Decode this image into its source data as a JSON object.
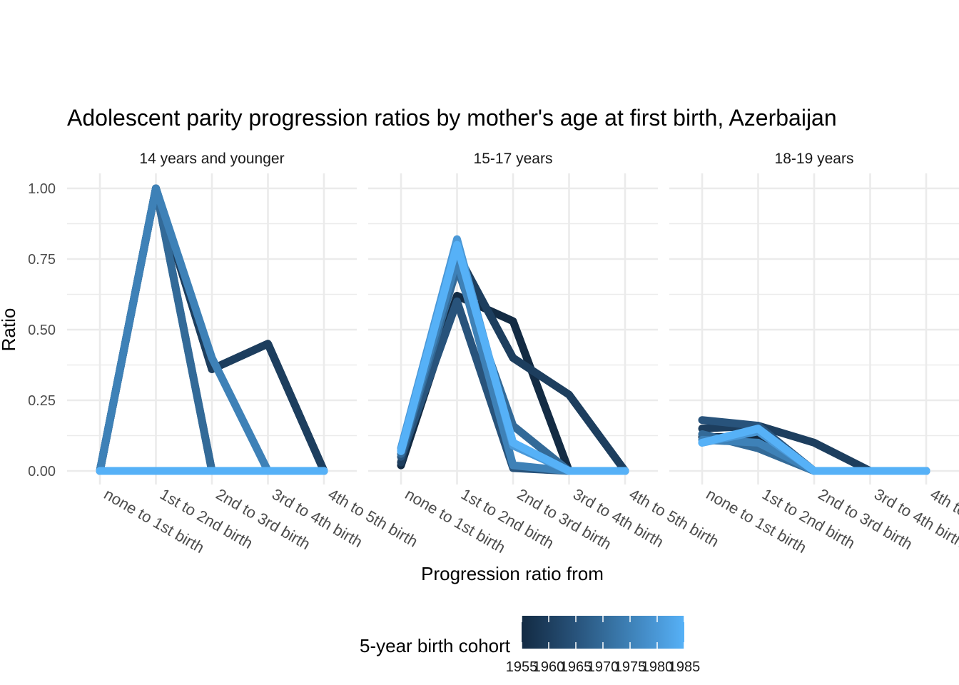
{
  "chart_data": {
    "type": "line",
    "title": "Adolescent parity progression ratios by mother's age at first birth,  Azerbaijan",
    "xlabel": "Progression ratio from",
    "ylabel": "Ratio",
    "ylim": [
      0,
      1
    ],
    "yticks": [
      "0.00",
      "0.25",
      "0.50",
      "0.75",
      "1.00"
    ],
    "categories": [
      "none to 1st birth",
      "1st to 2nd birth",
      "2nd to 3rd birth",
      "3rd to 4th birth",
      "4th to 5th birth"
    ],
    "legend": {
      "title": "5-year birth cohort",
      "position": "bottom",
      "ticks": [
        "1955",
        "1960",
        "1965",
        "1970",
        "1975",
        "1980",
        "1985"
      ],
      "colors": [
        "#132b43",
        "#1d3e5e",
        "#28537b",
        "#336a98",
        "#3e81b7",
        "#4a98d7",
        "#56b1f7"
      ]
    },
    "panels": [
      {
        "label": "14 years and younger",
        "series": [
          {
            "cohort": 1955,
            "color": "#132b43",
            "values": [
              0,
              1.0,
              0.36,
              0.45,
              0
            ]
          },
          {
            "cohort": 1960,
            "color": "#1d3e5e",
            "values": [
              0,
              1.0,
              0.36,
              0.45,
              0
            ]
          },
          {
            "cohort": 1965,
            "color": "#28537b",
            "values": [
              0,
              1.0,
              0,
              0,
              0
            ]
          },
          {
            "cohort": 1970,
            "color": "#336a98",
            "values": [
              0,
              1.0,
              0,
              0,
              0
            ]
          },
          {
            "cohort": 1975,
            "color": "#3e81b7",
            "values": [
              0,
              1.0,
              0.4,
              0,
              0
            ]
          },
          {
            "cohort": 1980,
            "color": "#4a98d7",
            "values": [
              0,
              0,
              0,
              0,
              0
            ]
          },
          {
            "cohort": 1985,
            "color": "#56b1f7",
            "values": [
              0,
              0,
              0,
              0,
              0
            ]
          }
        ]
      },
      {
        "label": "15-17 years",
        "series": [
          {
            "cohort": 1955,
            "color": "#132b43",
            "values": [
              0.02,
              0.62,
              0.53,
              0,
              0
            ]
          },
          {
            "cohort": 1960,
            "color": "#1d3e5e",
            "values": [
              0.03,
              0.77,
              0.4,
              0.27,
              0
            ]
          },
          {
            "cohort": 1965,
            "color": "#28537b",
            "values": [
              0.05,
              0.6,
              0.01,
              0,
              0
            ]
          },
          {
            "cohort": 1970,
            "color": "#336a98",
            "values": [
              0.06,
              0.72,
              0.16,
              0,
              0
            ]
          },
          {
            "cohort": 1975,
            "color": "#3e81b7",
            "values": [
              0.07,
              0.75,
              0.02,
              0,
              0
            ]
          },
          {
            "cohort": 1980,
            "color": "#4a98d7",
            "values": [
              0.08,
              0.82,
              0.09,
              0,
              0
            ]
          },
          {
            "cohort": 1985,
            "color": "#56b1f7",
            "values": [
              0.07,
              0.8,
              0.1,
              0,
              0
            ]
          }
        ]
      },
      {
        "label": "18-19 years",
        "series": [
          {
            "cohort": 1955,
            "color": "#132b43",
            "values": [
              0.12,
              0.12,
              0,
              0,
              0
            ]
          },
          {
            "cohort": 1960,
            "color": "#1d3e5e",
            "values": [
              0.15,
              0.16,
              0.1,
              0,
              0
            ]
          },
          {
            "cohort": 1965,
            "color": "#28537b",
            "values": [
              0.18,
              0.16,
              0,
              0,
              0
            ]
          },
          {
            "cohort": 1970,
            "color": "#336a98",
            "values": [
              0.13,
              0.08,
              0,
              0,
              0
            ]
          },
          {
            "cohort": 1975,
            "color": "#3e81b7",
            "values": [
              0.11,
              0.1,
              0,
              0,
              0
            ]
          },
          {
            "cohort": 1980,
            "color": "#4a98d7",
            "values": [
              0.1,
              0.14,
              0,
              0,
              0
            ]
          },
          {
            "cohort": 1985,
            "color": "#56b1f7",
            "values": [
              0.1,
              0.15,
              0,
              0,
              0
            ]
          }
        ]
      }
    ]
  }
}
